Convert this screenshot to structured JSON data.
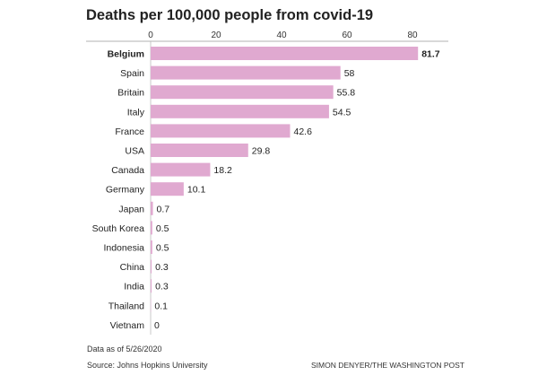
{
  "chart_data": {
    "type": "bar",
    "orientation": "horizontal",
    "title": "Deaths per 100,000 people from covid-19",
    "categories": [
      "Belgium",
      "Spain",
      "Britain",
      "Italy",
      "France",
      "USA",
      "Canada",
      "Germany",
      "Japan",
      "South Korea",
      "Indonesia",
      "China",
      "India",
      "Thailand",
      "Vietnam"
    ],
    "values": [
      81.7,
      58,
      55.8,
      54.5,
      42.6,
      29.8,
      18.2,
      10.1,
      0.7,
      0.5,
      0.5,
      0.3,
      0.3,
      0.1,
      0
    ],
    "value_labels": [
      "81.7",
      "58",
      "55.8",
      "54.5",
      "42.6",
      "29.8",
      "18.2",
      "10.1",
      "0.7",
      "0.5",
      "0.5",
      "0.3",
      "0.3",
      "0.1",
      "0"
    ],
    "highlight": "Belgium",
    "xlim": [
      0,
      80
    ],
    "xticks": [
      0,
      20,
      40,
      60,
      80
    ],
    "xtick_labels": [
      "0",
      "20",
      "40",
      "60",
      "80"
    ],
    "axis_position": "top",
    "grid": false,
    "legend": "none",
    "bar_color": "#e0a9d0",
    "axis_color": "#999999"
  },
  "footer": {
    "note": "Data as of 5/26/2020",
    "source": "Source: Johns Hopkins University",
    "credit": "SIMON DENYER/THE WASHINGTON POST"
  }
}
